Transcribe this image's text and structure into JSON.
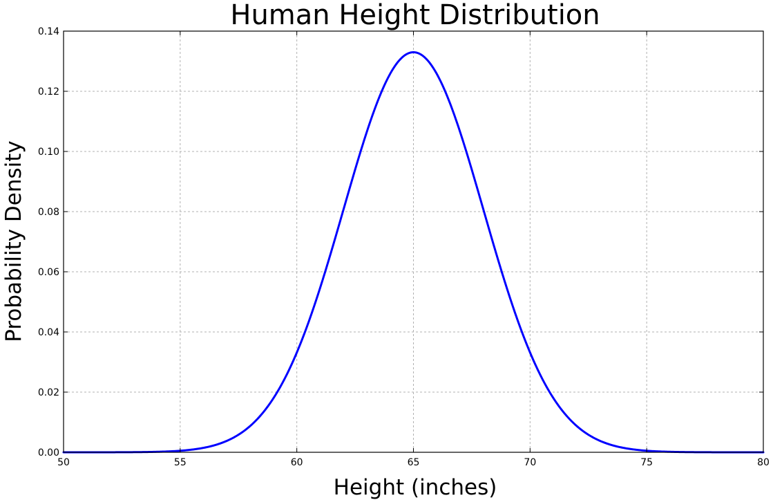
{
  "chart_data": {
    "type": "line",
    "title": "Human Height Distribution",
    "xlabel": "Height (inches)",
    "ylabel": "Probability Density",
    "xlim": [
      50,
      80
    ],
    "ylim": [
      0,
      0.14
    ],
    "xticks": [
      50,
      55,
      60,
      65,
      70,
      75,
      80
    ],
    "yticks": [
      0.0,
      0.02,
      0.04,
      0.06,
      0.08,
      0.1,
      0.12,
      0.14
    ],
    "xtick_labels": [
      "50",
      "55",
      "60",
      "65",
      "70",
      "75",
      "80"
    ],
    "ytick_labels": [
      "0.00",
      "0.02",
      "0.04",
      "0.06",
      "0.08",
      "0.10",
      "0.12",
      "0.14"
    ],
    "grid": true,
    "series": [
      {
        "color": "#0000ff",
        "distribution": "normal",
        "mean": 65,
        "std": 3,
        "x": [
          50,
          51,
          52,
          53,
          54,
          55,
          56,
          57,
          58,
          59,
          60,
          61,
          62,
          63,
          64,
          65,
          66,
          67,
          68,
          69,
          70,
          71,
          72,
          73,
          74,
          75,
          76,
          77,
          78,
          79,
          80
        ],
        "y": [
          0.0,
          0.0,
          0.0001,
          0.0001,
          0.0003,
          0.0007,
          0.0015,
          0.0038,
          0.0087,
          0.018,
          0.0332,
          0.0547,
          0.0807,
          0.1065,
          0.1258,
          0.133,
          0.1258,
          0.1065,
          0.0807,
          0.0547,
          0.0332,
          0.018,
          0.0087,
          0.0038,
          0.0015,
          0.0007,
          0.0003,
          0.0001,
          0.0001,
          0.0,
          0.0
        ]
      }
    ]
  }
}
